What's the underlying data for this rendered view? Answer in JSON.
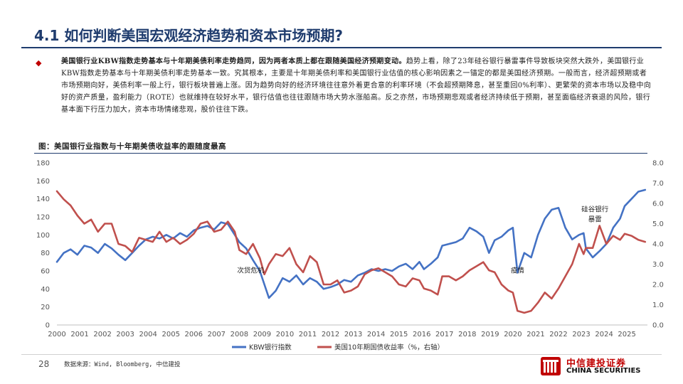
{
  "title": "4.1 如何判断美国宏观经济趋势和资本市场预期?",
  "paragraph": {
    "lead": "美国银行业KBW指数走势基本与十年期美债利率走势趋同，因为两者本质上都在跟随美国经济预期变动。",
    "body": "趋势上看，除了23年硅谷银行暴雷事件导致板块突然大跌外，美国银行业KBW指数走势基本与十年期美债利率走势基本一致。究其根本，主要是十年期美债利率和美国银行业估值的核心影响因素之一锚定的都是美国经济预期。一般而言，经济超预期或者市场预期向好，美债利率一般上行，银行板块普遍上涨。因为趋势向好的经济环境往往意外着更合意的利率环境（不会超预期降息，甚至重回0%利率）、更繁荣的资本市场以及稳中向好的资产质量，盈利能力（ROTE）也就维持在较好水平，银行估值也往往跟随市场大势水涨船高。反之亦然，市场预期悲观或者经济持续低于预期，甚至面临经济衰退的风险，银行基本面下行压力加大，资本市场情绪悲观，股价往往下跌。"
  },
  "figure_caption": "图：美国银行业指数与十年期美债收益率的跟随度最高",
  "source": "数据来源：Wind, Bloomberg, 中信建投",
  "page_number": "28",
  "logo": {
    "cn": "中信建投证券",
    "en": "CHINA SECURITIES"
  },
  "colors": {
    "kbw": "#4472c4",
    "ust": "#c0504d",
    "title": "#1f3c6e",
    "bullet": "#c00000"
  },
  "chart_data": {
    "type": "line",
    "x_labels": [
      "2000",
      "2001",
      "2002",
      "2003",
      "2004",
      "2005",
      "2006",
      "2007",
      "2008",
      "2009",
      "2010",
      "2011",
      "2012",
      "2013",
      "2014",
      "2015",
      "2016",
      "2017",
      "2018",
      "2019",
      "2020",
      "2021",
      "2022",
      "2023",
      "2024",
      "2025"
    ],
    "x_range": [
      2000,
      2025.9
    ],
    "left_axis": {
      "ticks": [
        0,
        20,
        40,
        60,
        80,
        100,
        120,
        140,
        160,
        180
      ],
      "range": [
        0,
        180
      ]
    },
    "right_axis": {
      "ticks": [
        "0.0",
        "1.0",
        "2.0",
        "3.0",
        "4.0",
        "5.0",
        "6.0",
        "7.0",
        "8.0"
      ],
      "range": [
        0,
        8
      ]
    },
    "annotations": [
      {
        "text": "次贷危机",
        "x": 2008.5,
        "y_left": 58
      },
      {
        "text": "疫情",
        "x": 2020.2,
        "y_left": 58
      },
      {
        "text": "硅谷银行",
        "x": 2023.6,
        "y_left": 126
      },
      {
        "text": "暴雷",
        "x": 2023.6,
        "y_left": 115
      }
    ],
    "series": [
      {
        "name": "KBW银行指数",
        "axis": "left",
        "x": [
          2000,
          2000.3,
          2000.6,
          2000.9,
          2001.2,
          2001.5,
          2001.8,
          2002.1,
          2002.4,
          2002.7,
          2003,
          2003.3,
          2003.6,
          2003.9,
          2004.2,
          2004.5,
          2004.8,
          2005.1,
          2005.4,
          2005.7,
          2006,
          2006.3,
          2006.6,
          2006.9,
          2007.2,
          2007.5,
          2007.8,
          2008,
          2008.3,
          2008.6,
          2008.9,
          2009.1,
          2009.3,
          2009.6,
          2009.9,
          2010.2,
          2010.5,
          2010.8,
          2011.1,
          2011.4,
          2011.7,
          2012,
          2012.3,
          2012.6,
          2012.9,
          2013.2,
          2013.5,
          2013.8,
          2014.1,
          2014.4,
          2014.7,
          2015,
          2015.3,
          2015.6,
          2015.9,
          2016.1,
          2016.4,
          2016.7,
          2016.9,
          2017.2,
          2017.5,
          2017.8,
          2018.1,
          2018.4,
          2018.7,
          2018.95,
          2019.2,
          2019.5,
          2019.8,
          2020,
          2020.2,
          2020.5,
          2020.8,
          2021.1,
          2021.4,
          2021.7,
          2022,
          2022.3,
          2022.6,
          2022.9,
          2023.1,
          2023.2,
          2023.5,
          2023.8,
          2024.1,
          2024.4,
          2024.7,
          2024.9,
          2025.2,
          2025.5,
          2025.8
        ],
        "values": [
          70,
          80,
          84,
          78,
          88,
          86,
          80,
          90,
          85,
          78,
          72,
          80,
          88,
          95,
          98,
          96,
          100,
          96,
          102,
          98,
          105,
          108,
          110,
          106,
          114,
          112,
          100,
          92,
          85,
          72,
          60,
          45,
          30,
          38,
          52,
          48,
          55,
          45,
          52,
          48,
          40,
          42,
          45,
          50,
          48,
          55,
          58,
          62,
          60,
          62,
          60,
          65,
          68,
          62,
          70,
          62,
          68,
          75,
          88,
          90,
          92,
          96,
          108,
          104,
          98,
          80,
          94,
          98,
          105,
          108,
          58,
          80,
          75,
          100,
          118,
          128,
          130,
          108,
          95,
          100,
          102,
          85,
          75,
          82,
          90,
          108,
          118,
          132,
          140,
          148,
          150
        ]
      },
      {
        "name": "美国10年期国债收益率（%，右轴）",
        "axis": "right",
        "x": [
          2000,
          2000.3,
          2000.6,
          2000.9,
          2001.2,
          2001.5,
          2001.8,
          2002.1,
          2002.4,
          2002.7,
          2003,
          2003.3,
          2003.6,
          2003.9,
          2004.2,
          2004.5,
          2004.8,
          2005.1,
          2005.4,
          2005.7,
          2006,
          2006.3,
          2006.6,
          2006.9,
          2007.2,
          2007.5,
          2007.8,
          2008,
          2008.3,
          2008.6,
          2008.9,
          2009.1,
          2009.3,
          2009.6,
          2009.9,
          2010.2,
          2010.5,
          2010.8,
          2011.1,
          2011.4,
          2011.7,
          2012,
          2012.3,
          2012.6,
          2012.9,
          2013.2,
          2013.5,
          2013.8,
          2014.1,
          2014.4,
          2014.7,
          2015,
          2015.3,
          2015.6,
          2015.9,
          2016.1,
          2016.4,
          2016.7,
          2016.9,
          2017.2,
          2017.5,
          2017.8,
          2018.1,
          2018.4,
          2018.7,
          2018.95,
          2019.2,
          2019.5,
          2019.8,
          2020,
          2020.2,
          2020.5,
          2020.8,
          2021.1,
          2021.4,
          2021.7,
          2022,
          2022.3,
          2022.6,
          2022.9,
          2023.1,
          2023.2,
          2023.5,
          2023.8,
          2024.1,
          2024.4,
          2024.7,
          2024.9,
          2025.2,
          2025.5,
          2025.8
        ],
        "values": [
          6.6,
          6.2,
          5.9,
          5.4,
          5.0,
          5.2,
          4.6,
          5.0,
          5.0,
          4.0,
          3.9,
          3.6,
          4.3,
          4.2,
          4.1,
          4.6,
          4.1,
          4.3,
          4.0,
          4.2,
          4.5,
          5.0,
          5.1,
          4.6,
          4.7,
          5.1,
          4.6,
          3.7,
          3.5,
          4.0,
          3.3,
          2.5,
          3.0,
          3.5,
          3.4,
          3.8,
          3.0,
          2.6,
          3.4,
          3.1,
          2.0,
          2.0,
          2.2,
          1.6,
          1.7,
          1.9,
          2.5,
          2.7,
          2.8,
          2.6,
          2.4,
          2.0,
          1.9,
          2.3,
          2.2,
          1.8,
          1.7,
          1.5,
          2.4,
          2.4,
          2.2,
          2.4,
          2.7,
          2.9,
          3.1,
          2.7,
          2.6,
          2.0,
          1.7,
          1.6,
          0.7,
          0.6,
          0.7,
          1.1,
          1.6,
          1.3,
          1.8,
          2.4,
          3.0,
          4.0,
          3.5,
          3.8,
          3.8,
          4.9,
          4.0,
          4.4,
          4.2,
          4.5,
          4.4,
          4.2,
          4.1
        ]
      }
    ]
  }
}
